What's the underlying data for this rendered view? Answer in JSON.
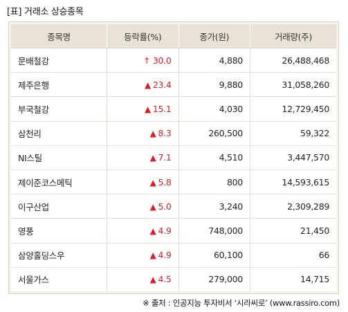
{
  "title": "[표] 거래소 상승종목",
  "columns": [
    "종목명",
    "등락률(%)",
    "종가(원)",
    "거래량(주)"
  ],
  "rows": [
    {
      "name": "문배철강",
      "symbol": "↑",
      "change": "30.0",
      "price": "4,880",
      "volume": "26,488,468"
    },
    {
      "name": "제주은행",
      "symbol": "▲",
      "change": "23.4",
      "price": "9,880",
      "volume": "31,058,260"
    },
    {
      "name": "부국철강",
      "symbol": "▲",
      "change": "15.1",
      "price": "4,030",
      "volume": "12,729,450"
    },
    {
      "name": "삼천리",
      "symbol": "▲",
      "change": "8.3",
      "price": "260,500",
      "volume": "59,322"
    },
    {
      "name": "NI스틸",
      "symbol": "▲",
      "change": "7.1",
      "price": "4,510",
      "volume": "3,447,570"
    },
    {
      "name": "제이준코스메틱",
      "symbol": "▲",
      "change": "5.8",
      "price": "800",
      "volume": "14,593,615"
    },
    {
      "name": "이구산업",
      "symbol": "▲",
      "change": "5.0",
      "price": "3,240",
      "volume": "2,309,289"
    },
    {
      "name": "영풍",
      "symbol": "▲",
      "change": "4.9",
      "price": "748,000",
      "volume": "21,450"
    },
    {
      "name": "삼양홀딩스우",
      "symbol": "▲",
      "change": "4.9",
      "price": "60,100",
      "volume": "66"
    },
    {
      "name": "서울가스",
      "symbol": "▲",
      "change": "4.5",
      "price": "279,000",
      "volume": "14,715"
    }
  ],
  "source": "※ 출처 : 인공지능 투자비서 ‘시라씨로’ (www.rassiro.com)",
  "colors": {
    "up": "#d91f26",
    "header_bg": "#e8e3d6",
    "frame_bg": "#f6f3ec"
  }
}
